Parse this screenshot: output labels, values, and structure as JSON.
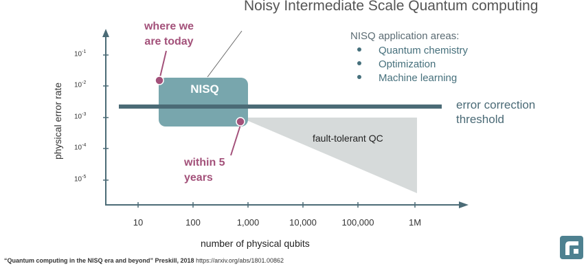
{
  "title": "Noisy Intermediate Scale Quantum computing",
  "applications": {
    "heading": "NISQ application areas:",
    "items": [
      "Quantum chemistry",
      "Optimization",
      "Machine learning"
    ]
  },
  "threshold_label": "error correction threshold",
  "annotations": {
    "today": "where we are today",
    "five_years": "within 5 years",
    "nisq": "NISQ",
    "fault_tolerant": "fault-tolerant QC"
  },
  "axes": {
    "ylabel": "physical error rate",
    "xlabel": "number of physical qubits",
    "y_ticks": [
      {
        "base": "10",
        "exp": "-1"
      },
      {
        "base": "10",
        "exp": "-2"
      },
      {
        "base": "10",
        "exp": "-3"
      },
      {
        "base": "10",
        "exp": "-4"
      },
      {
        "base": "10",
        "exp": "-5"
      }
    ],
    "x_ticks": [
      "10",
      "100",
      "1,000",
      "10,000",
      "100,000",
      "1M"
    ]
  },
  "citation": {
    "quote": "“Quantum computing in the NISQ era and beyond” Preskill, 2018",
    "url": "https://arxiv.org/abs/1801.00862"
  },
  "colors": {
    "nisq_box": "#78a6ad",
    "threshold_line": "#4b6b76",
    "fault_tolerant_region": "#d6dada",
    "annotation": "#a3517a",
    "axis": "#4b6b76"
  }
}
